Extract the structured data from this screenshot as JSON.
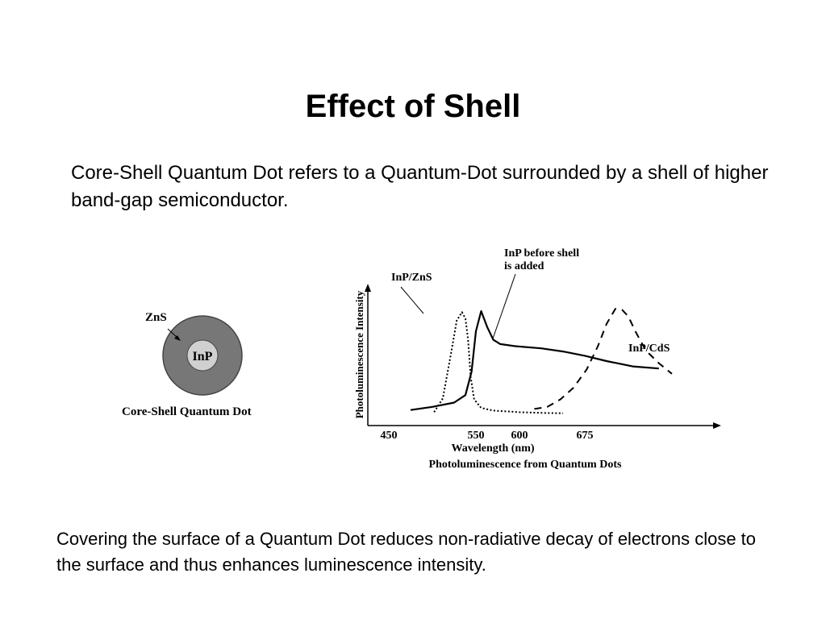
{
  "slide": {
    "title": "Effect of Shell",
    "intro": "Core-Shell Quantum Dot refers to a Quantum-Dot surrounded by a shell of higher band-gap semiconductor.",
    "conclusion": "Covering the surface of a Quantum Dot reduces non-radiative decay of electrons close to the surface and thus enhances luminescence intensity."
  },
  "dot_diagram": {
    "shell_label": "ZnS",
    "core_label": "InP",
    "caption": "Core-Shell Quantum Dot",
    "colors": {
      "shell": "#777777",
      "core": "#d0d0d0"
    }
  },
  "pl_figure": {
    "ylabel": "Photoluminescence Intensity",
    "xlabel": "Wavelength (nm)",
    "caption": "Photoluminescence from Quantum Dots",
    "annotations": {
      "inp_zns": "InP/ZnS",
      "inp_before_line1": "InP before shell",
      "inp_before_line2": "is added",
      "inp_cds": "InP/CdS"
    }
  },
  "chart_data": {
    "type": "line",
    "title": "Photoluminescence from Quantum Dots",
    "xlabel": "Wavelength (nm)",
    "ylabel": "Photoluminescence Intensity",
    "x_ticks": [
      450,
      550,
      600,
      675
    ],
    "series": [
      {
        "name": "InP/ZnS",
        "style": "dotted",
        "x": [
          502,
          512,
          522,
          528,
          534,
          538,
          541,
          544,
          548,
          556,
          570,
          600,
          630,
          650
        ],
        "y": [
          0.02,
          0.15,
          0.6,
          0.88,
          0.96,
          0.9,
          0.7,
          0.35,
          0.14,
          0.06,
          0.035,
          0.02,
          0.012,
          0.01
        ]
      },
      {
        "name": "InP before shell is added",
        "style": "solid",
        "x": [
          475,
          500,
          525,
          538,
          545,
          550,
          556,
          563,
          570,
          578,
          595,
          625,
          650,
          675,
          700,
          730,
          760
        ],
        "y": [
          0.04,
          0.07,
          0.11,
          0.18,
          0.4,
          0.78,
          0.97,
          0.82,
          0.7,
          0.66,
          0.64,
          0.62,
          0.59,
          0.55,
          0.5,
          0.45,
          0.43
        ]
      },
      {
        "name": "InP/CdS",
        "style": "dashed",
        "x": [
          617,
          632,
          647,
          662,
          677,
          690,
          700,
          710,
          718,
          725,
          733,
          745,
          760,
          775
        ],
        "y": [
          0.05,
          0.07,
          0.14,
          0.25,
          0.42,
          0.64,
          0.85,
          0.99,
          0.98,
          0.92,
          0.78,
          0.6,
          0.48,
          0.38
        ]
      }
    ]
  }
}
